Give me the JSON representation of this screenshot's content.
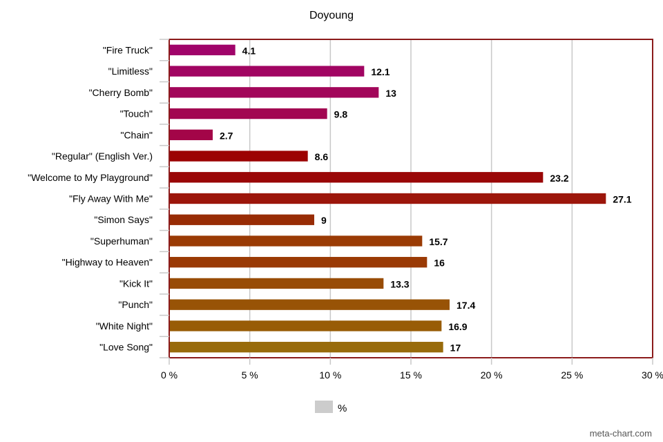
{
  "chart_data": {
    "type": "bar",
    "orientation": "horizontal",
    "title": "Doyoung",
    "categories": [
      "\"Fire Truck\"",
      "\"Limitless\"",
      "\"Cherry Bomb\"",
      "\"Touch\"",
      "\"Chain\"",
      "\"Regular\" (English Ver.)",
      "\"Welcome to My Playground\"",
      "\"Fly Away With Me\"",
      "\"Simon Says\"",
      "\"Superhuman\"",
      "\"Highway to Heaven\"",
      "\"Kick It\"",
      "\"Punch\"",
      "\"White Night\"",
      "\"Love Song\""
    ],
    "series": [
      {
        "name": "%",
        "values": [
          4.1,
          12.1,
          13,
          9.8,
          2.7,
          8.6,
          23.2,
          27.1,
          9,
          15.7,
          16,
          13.3,
          17.4,
          16.9,
          17
        ],
        "value_labels": [
          "4.1",
          "12.1",
          "13",
          "9.8",
          "2.7",
          "8.6",
          "23.2",
          "27.1",
          "9",
          "15.7",
          "16",
          "13.3",
          "17.4",
          "16.9",
          "17"
        ]
      }
    ],
    "bar_colors": [
      "#a0046a",
      "#a10562",
      "#a2065a",
      "#a20651",
      "#a30548",
      "#9c0303",
      "#9a0707",
      "#9c160b",
      "#982c05",
      "#9a3b05",
      "#9a3a05",
      "#984c06",
      "#985306",
      "#985c06",
      "#986b0b"
    ],
    "xlim": [
      0,
      30
    ],
    "x_ticks": [
      0,
      5,
      10,
      15,
      20,
      25,
      30
    ],
    "x_tick_labels": [
      "0 %",
      "5 %",
      "10 %",
      "15 %",
      "20 %",
      "25 %",
      "30 %"
    ],
    "grid": true,
    "grid_color": "#c8c8c8",
    "frame_color": "#8b1a1a",
    "legend": {
      "position": "bottom-center",
      "label": "%",
      "swatch_color": "#cccccc"
    }
  },
  "watermark": "meta-chart.com"
}
